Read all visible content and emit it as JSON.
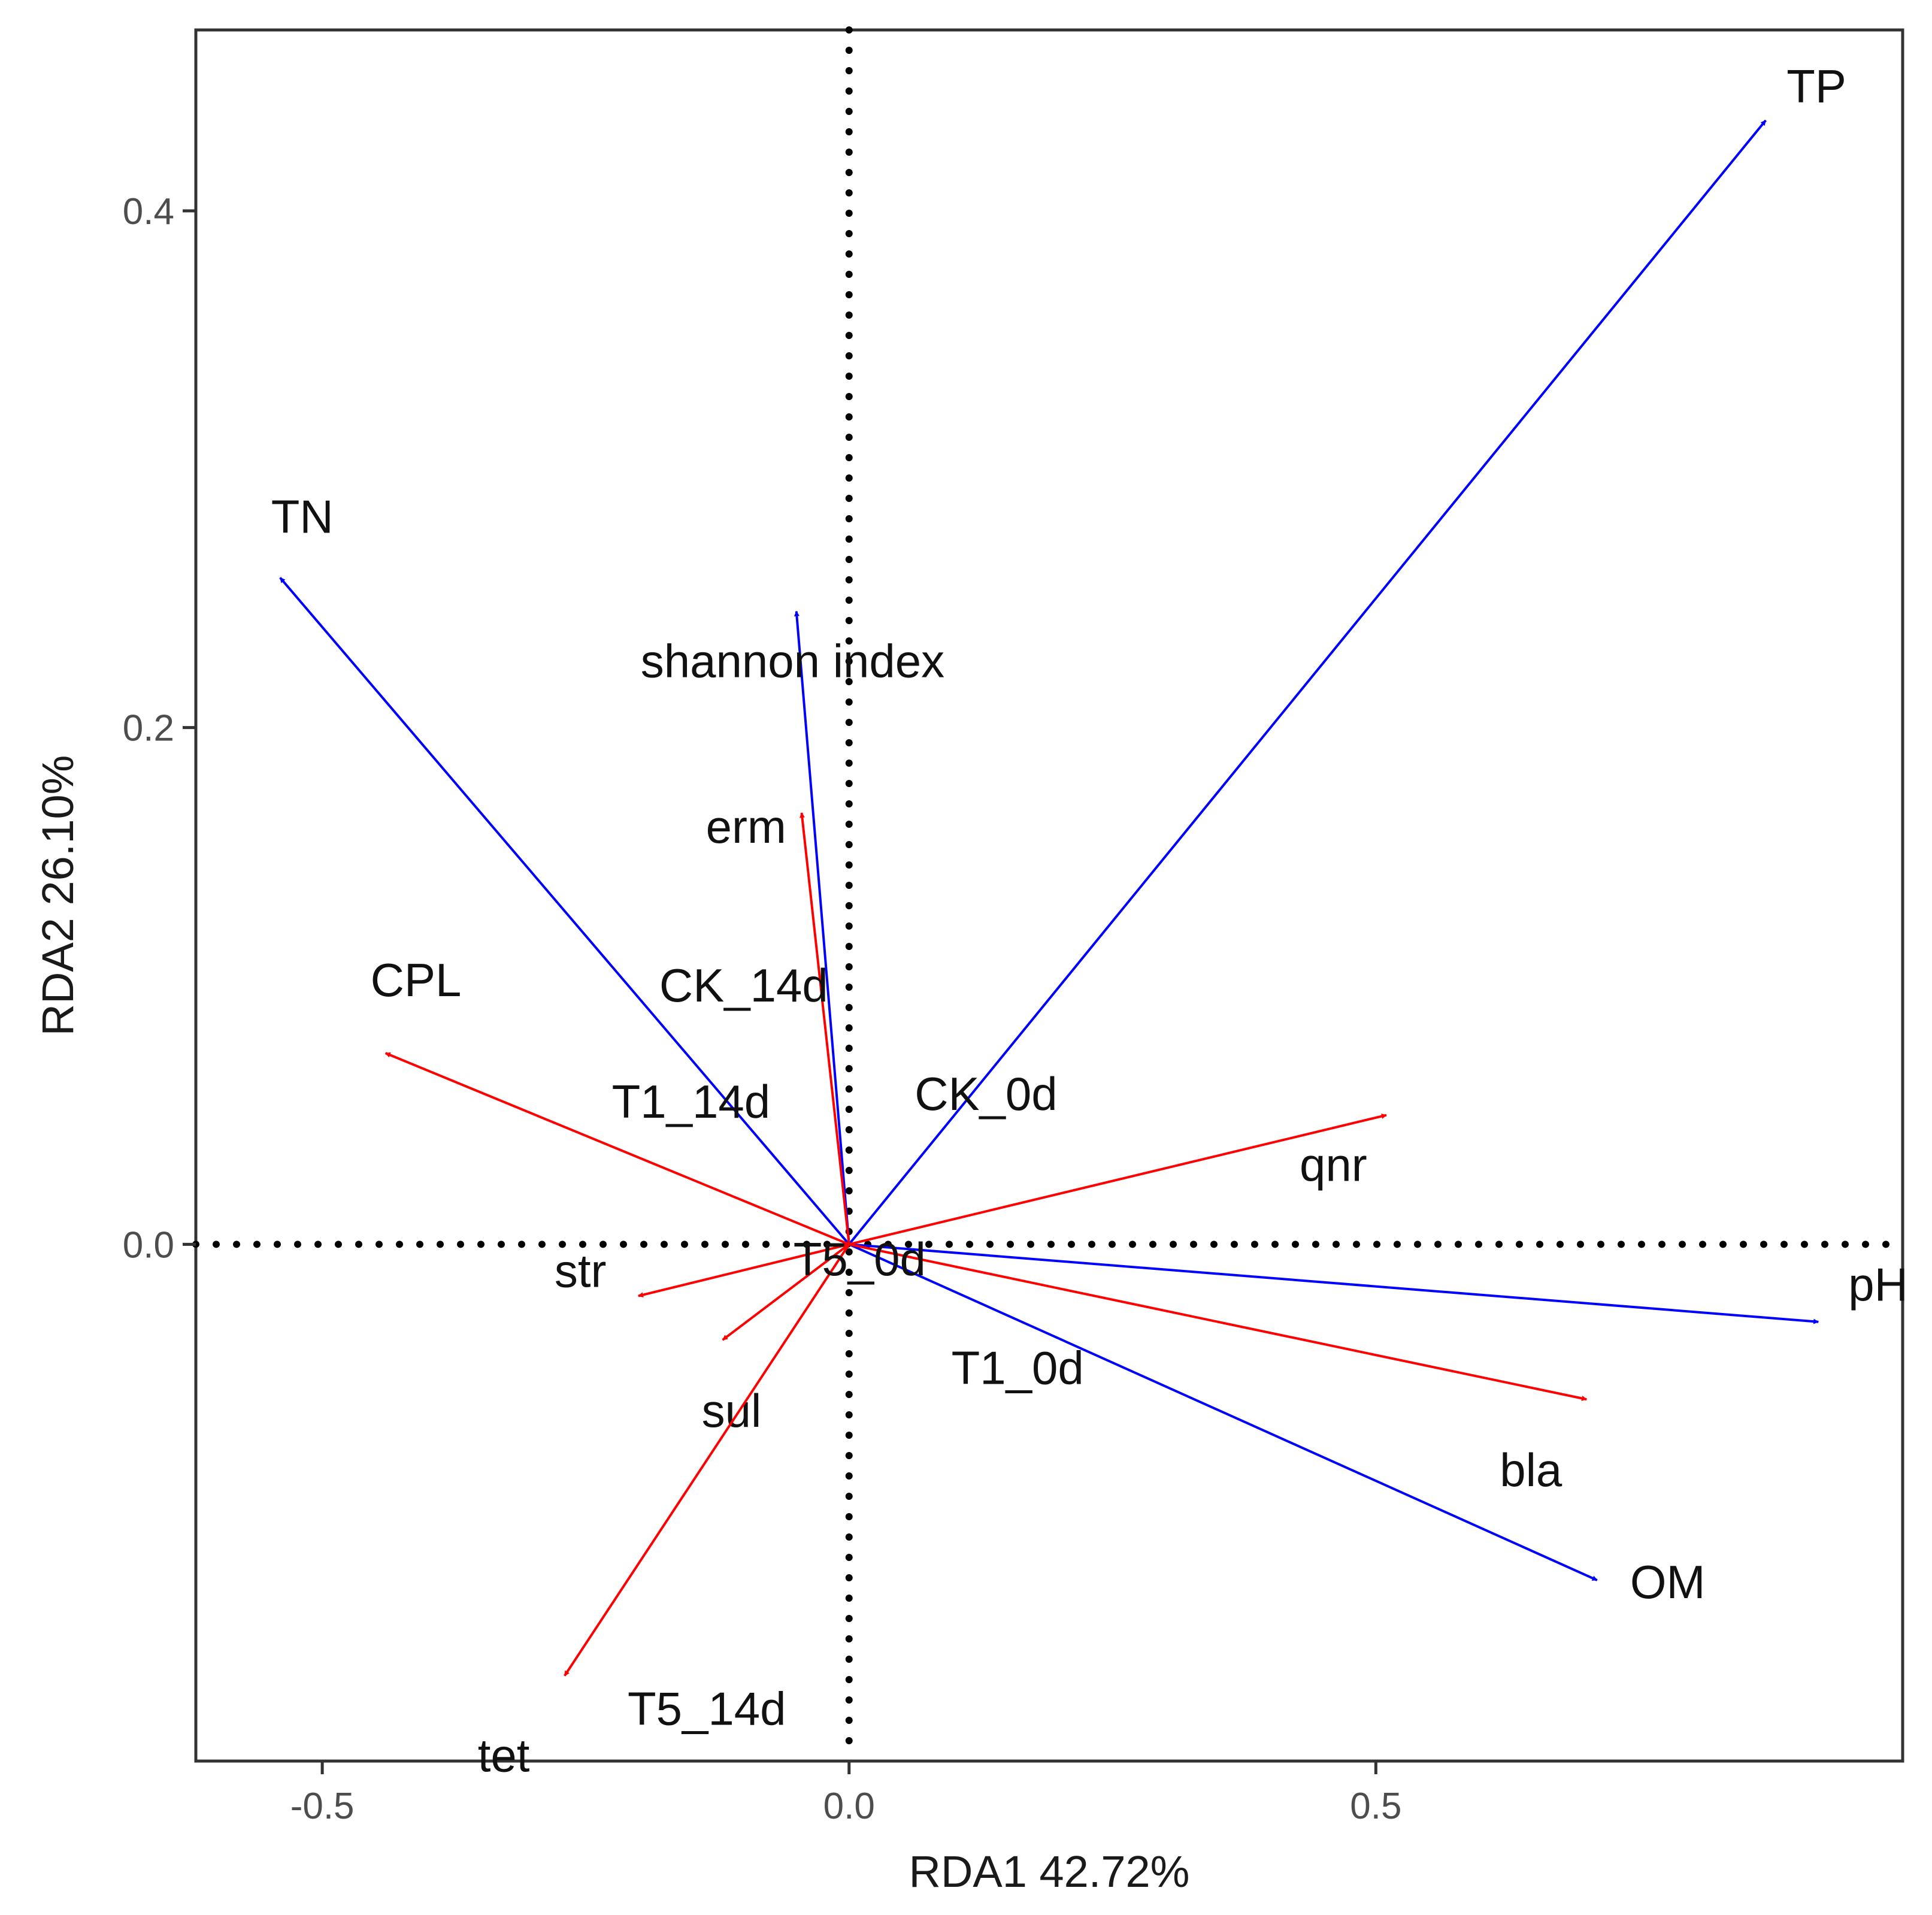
{
  "chart_data": {
    "type": "biplot",
    "title": "",
    "xlabel": "RDA1 42.72%",
    "ylabel": "RDA2 26.10%",
    "xlim": [
      -0.62,
      1.0
    ],
    "ylim": [
      -0.2,
      0.47
    ],
    "x_ticks": [
      {
        "value": -0.5,
        "label": "-0.5"
      },
      {
        "value": 0.0,
        "label": "0.0"
      },
      {
        "value": 0.5,
        "label": "0.5"
      }
    ],
    "y_ticks": [
      {
        "value": 0.0,
        "label": "0.0"
      },
      {
        "value": 0.2,
        "label": "0.2"
      },
      {
        "value": 0.4,
        "label": "0.4"
      }
    ],
    "reference_lines": {
      "x": 0,
      "y": 0,
      "style": "dotted"
    },
    "grid": false,
    "series": [
      {
        "group": "environmental",
        "color": "#0000ff",
        "vectors": [
          {
            "label": "TP",
            "x": 0.87,
            "y": 0.435
          },
          {
            "label": "TN",
            "x": -0.54,
            "y": 0.258
          },
          {
            "label": "shannon index",
            "x": -0.05,
            "y": 0.245
          },
          {
            "label": "pH",
            "x": 0.92,
            "y": -0.03
          },
          {
            "label": "OM",
            "x": 0.71,
            "y": -0.13
          }
        ]
      },
      {
        "group": "resistance_genes",
        "color": "#ff0000",
        "vectors": [
          {
            "label": "erm",
            "x": -0.045,
            "y": 0.167
          },
          {
            "label": "CPL",
            "x": -0.44,
            "y": 0.074
          },
          {
            "label": "qnr",
            "x": 0.51,
            "y": 0.05
          },
          {
            "label": "str",
            "x": -0.2,
            "y": -0.02
          },
          {
            "label": "sul",
            "x": -0.12,
            "y": -0.037
          },
          {
            "label": "bla",
            "x": 0.7,
            "y": -0.06
          },
          {
            "label": "tet",
            "x": -0.27,
            "y": -0.167
          }
        ]
      }
    ],
    "site_labels": [
      {
        "label": "CK_14d",
        "x": -0.1,
        "y": 0.1
      },
      {
        "label": "T1_14d",
        "x": -0.15,
        "y": 0.055
      },
      {
        "label": "CK_0d",
        "x": 0.13,
        "y": 0.058
      },
      {
        "label": "T5_0d",
        "x": 0.01,
        "y": -0.006
      },
      {
        "label": "T1_0d",
        "x": 0.16,
        "y": -0.048
      },
      {
        "label": "T5_14d",
        "x": -0.135,
        "y": -0.18
      }
    ]
  }
}
